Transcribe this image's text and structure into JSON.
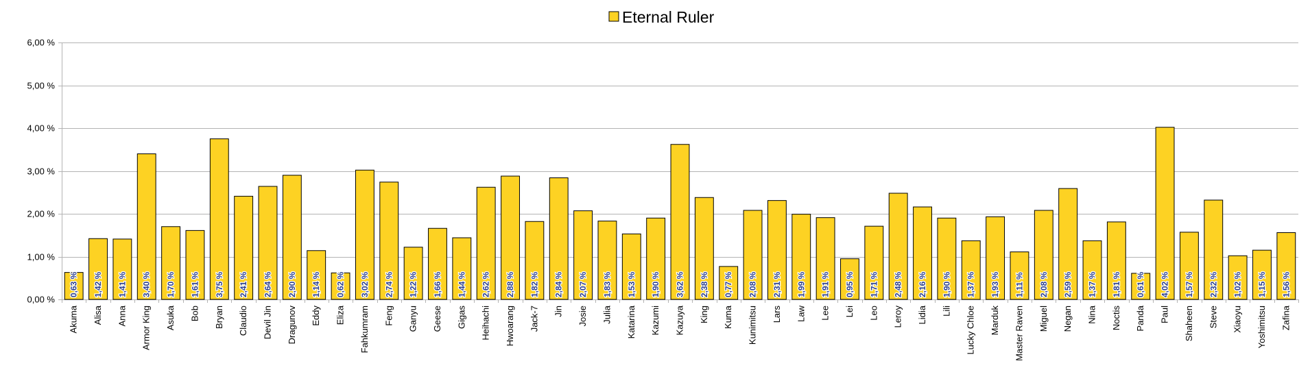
{
  "chart_data": {
    "type": "bar",
    "legend_position": "top",
    "grid": true,
    "ylim": [
      0,
      6
    ],
    "y_ticks": [
      "0,00 %",
      "1,00 %",
      "2,00 %",
      "3,00 %",
      "4,00 %",
      "5,00 %",
      "6,00 %"
    ],
    "series": [
      {
        "name": "Eternal Ruler",
        "color": "#FDD223",
        "values": [
          0.63,
          1.42,
          1.41,
          3.4,
          1.7,
          1.61,
          3.75,
          2.41,
          2.64,
          2.9,
          1.14,
          0.62,
          3.02,
          2.74,
          1.22,
          1.66,
          1.44,
          2.62,
          2.88,
          1.82,
          2.84,
          2.07,
          1.83,
          1.53,
          1.9,
          3.62,
          2.38,
          0.77,
          2.08,
          2.31,
          1.99,
          1.91,
          0.95,
          1.71,
          2.48,
          2.16,
          1.9,
          1.37,
          1.93,
          1.11,
          2.08,
          2.59,
          1.37,
          1.81,
          0.61,
          4.02,
          1.57,
          2.32,
          1.02,
          1.15,
          1.56
        ],
        "labels": [
          "0,63 %",
          "1,42 %",
          "1,41 %",
          "3,40 %",
          "1,70 %",
          "1,61 %",
          "3,75 %",
          "2,41 %",
          "2,64 %",
          "2,90 %",
          "1,14 %",
          "0,62 %",
          "3,02 %",
          "2,74 %",
          "1,22 %",
          "1,66 %",
          "1,44 %",
          "2,62 %",
          "2,88 %",
          "1,82 %",
          "2,84 %",
          "2,07 %",
          "1,83 %",
          "1,53 %",
          "1,90 %",
          "3,62 %",
          "2,38 %",
          "0,77 %",
          "2,08 %",
          "2,31 %",
          "1,99 %",
          "1,91 %",
          "0,95 %",
          "1,71 %",
          "2,48 %",
          "2,16 %",
          "1,90 %",
          "1,37 %",
          "1,93 %",
          "1,11 %",
          "2,08 %",
          "2,59 %",
          "1,37 %",
          "1,81 %",
          "0,61 %",
          "4,02 %",
          "1,57 %",
          "2,32 %",
          "1,02 %",
          "1,15 %",
          "1,56 %"
        ]
      }
    ],
    "categories": [
      "Akuma",
      "Alisa",
      "Anna",
      "Armor King",
      "Asuka",
      "Bob",
      "Bryan",
      "Claudio",
      "Devil Jin",
      "Dragunov",
      "Eddy",
      "Eliza",
      "Fahkumram",
      "Feng",
      "Ganyu",
      "Geese",
      "Gigas",
      "Heihachi",
      "Hwoarang",
      "Jack-7",
      "Jin",
      "Josie",
      "Julia",
      "Katarina",
      "Kazumi",
      "Kazuya",
      "King",
      "Kuma",
      "Kunimitsu",
      "Lars",
      "Law",
      "Lee",
      "Lei",
      "Leo",
      "Leroy",
      "Lidia",
      "Lili",
      "Lucky Chloe",
      "Marduk",
      "Master Raven",
      "Miguel",
      "Negan",
      "Nina",
      "Noctis",
      "Panda",
      "Paul",
      "Shaheen",
      "Steve",
      "Xiaoyu",
      "Yoshimitsu",
      "Zafina"
    ]
  }
}
